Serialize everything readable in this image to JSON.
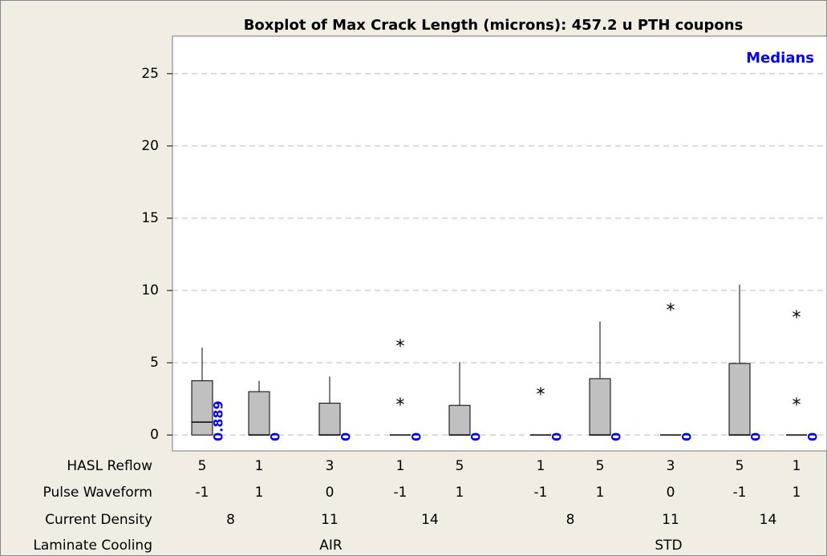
{
  "chart_data": {
    "type": "box",
    "title": "Boxplot of Max Crack Length (microns): 457.2 u PTH coupons",
    "legend": "Medians",
    "box_color": "#c0c0c0",
    "label_color": "#0000ff",
    "ylim": [
      -1.1,
      27.6
    ],
    "yticks": [
      0,
      5,
      10,
      15,
      20,
      25
    ],
    "grid": true,
    "boxes": [
      {
        "q1": 0,
        "median": 0.889,
        "q3": 3.75,
        "whisker_low": 0,
        "whisker_high": 6.05,
        "outliers": []
      },
      {
        "q1": 0,
        "median": 0,
        "q3": 3.0,
        "whisker_low": 0,
        "whisker_high": 3.75,
        "outliers": []
      },
      {
        "q1": 0,
        "median": 0,
        "q3": 2.2,
        "whisker_low": 0,
        "whisker_high": 4.05,
        "outliers": []
      },
      {
        "q1": 0,
        "median": 0,
        "q3": 0,
        "whisker_low": 0,
        "whisker_high": 0,
        "outliers": [
          6.35,
          2.3
        ]
      },
      {
        "q1": 0,
        "median": 0,
        "q3": 2.05,
        "whisker_low": 0,
        "whisker_high": 5.05,
        "outliers": []
      },
      {
        "q1": 0,
        "median": 0,
        "q3": 0,
        "whisker_low": 0,
        "whisker_high": 0,
        "outliers": [
          3.0
        ]
      },
      {
        "q1": 0,
        "median": 0,
        "q3": 3.9,
        "whisker_low": 0,
        "whisker_high": 7.85,
        "outliers": []
      },
      {
        "q1": 0,
        "median": 0,
        "q3": 0,
        "whisker_low": 0,
        "whisker_high": 0,
        "outliers": [
          8.85
        ]
      },
      {
        "q1": 0,
        "median": 0,
        "q3": 4.95,
        "whisker_low": 0,
        "whisker_high": 10.4,
        "outliers": []
      },
      {
        "q1": 0,
        "median": 0,
        "q3": 0,
        "whisker_low": 0,
        "whisker_high": 0,
        "outliers": [
          8.35,
          2.3
        ]
      }
    ],
    "factors": [
      {
        "name": "HASL Reflow",
        "levels": [
          5,
          1,
          3,
          1,
          5,
          1,
          5,
          3,
          5,
          1
        ]
      },
      {
        "name": "Pulse Waveform",
        "levels": [
          -1,
          1,
          0,
          -1,
          1,
          -1,
          1,
          0,
          -1,
          1
        ]
      },
      {
        "name": "Current Density",
        "levels": [
          8,
          11,
          14,
          8,
          11,
          14
        ]
      },
      {
        "name": "Laminate Cooling",
        "levels": [
          "AIR",
          "STD"
        ]
      }
    ]
  }
}
